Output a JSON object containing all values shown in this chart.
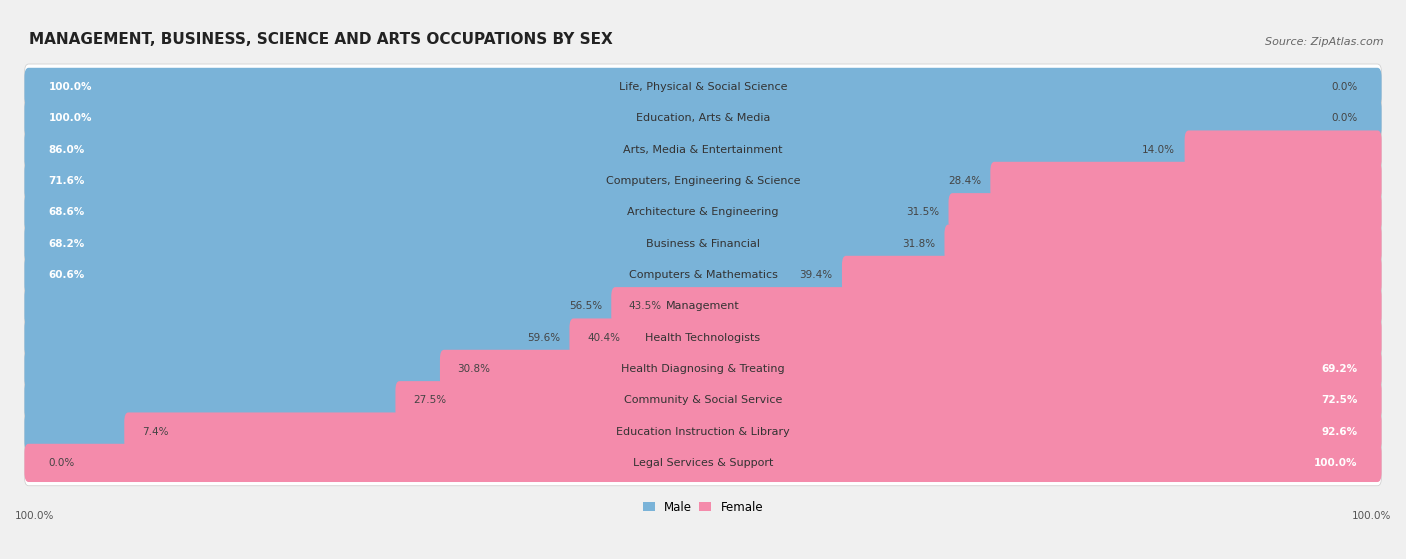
{
  "title": "MANAGEMENT, BUSINESS, SCIENCE AND ARTS OCCUPATIONS BY SEX",
  "source": "Source: ZipAtlas.com",
  "categories": [
    "Life, Physical & Social Science",
    "Education, Arts & Media",
    "Arts, Media & Entertainment",
    "Computers, Engineering & Science",
    "Architecture & Engineering",
    "Business & Financial",
    "Computers & Mathematics",
    "Management",
    "Health Technologists",
    "Health Diagnosing & Treating",
    "Community & Social Service",
    "Education Instruction & Library",
    "Legal Services & Support"
  ],
  "male": [
    100.0,
    100.0,
    86.0,
    71.6,
    68.6,
    68.2,
    60.6,
    43.5,
    40.4,
    30.8,
    27.5,
    7.4,
    0.0
  ],
  "female": [
    0.0,
    0.0,
    14.0,
    28.4,
    31.5,
    31.8,
    39.4,
    56.5,
    59.6,
    69.2,
    72.5,
    92.6,
    100.0
  ],
  "male_color": "#7ab3d8",
  "female_color": "#f48bab",
  "bg_color": "#f0f0f0",
  "row_bg_color": "#e8e8e8",
  "title_fontsize": 11,
  "source_fontsize": 8,
  "label_fontsize": 8,
  "bar_label_fontsize": 7.5
}
